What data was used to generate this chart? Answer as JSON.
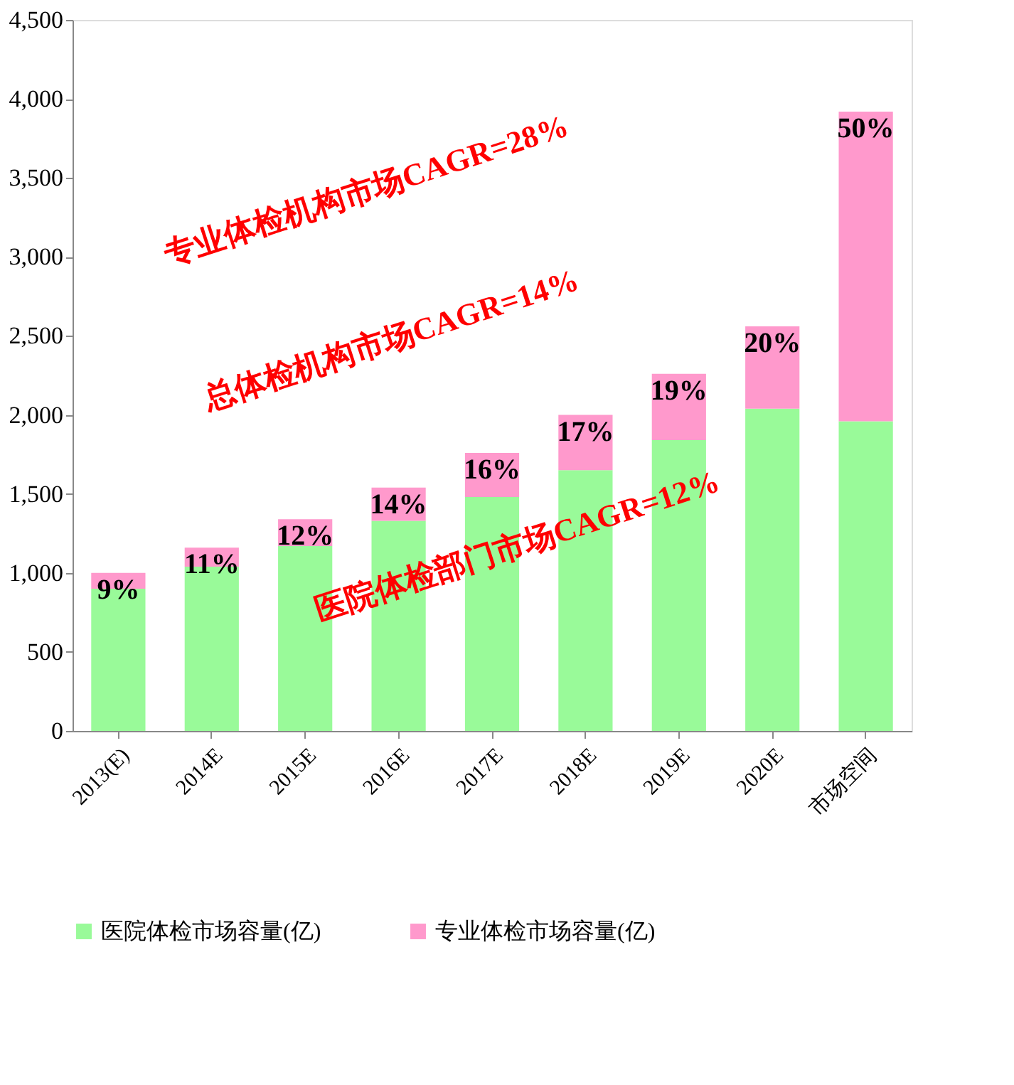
{
  "chart_data": {
    "type": "bar",
    "stacked": true,
    "categories": [
      "2013(E)",
      "2014E",
      "2015E",
      "2016E",
      "2017E",
      "2018E",
      "2019E",
      "2020E",
      "市场空间"
    ],
    "series": [
      {
        "name": "医院体检市场容量(亿)",
        "color": "#99fa99",
        "values": [
          900,
          1040,
          1170,
          1330,
          1480,
          1650,
          1840,
          2040,
          1960
        ]
      },
      {
        "name": "专业体检市场容量(亿)",
        "color": "#ff99cc",
        "values": [
          100,
          120,
          170,
          210,
          280,
          350,
          420,
          520,
          1960
        ]
      }
    ],
    "ylim": [
      0,
      4500
    ],
    "yticks": [
      0,
      500,
      {
        "value": 1000,
        "label": "1,000"
      },
      {
        "value": 1500,
        "label": "1,500"
      },
      {
        "value": 2000,
        "label": "2,000"
      },
      {
        "value": 2500,
        "label": "2,500"
      },
      {
        "value": 3000,
        "label": "3,000"
      },
      {
        "value": 3500,
        "label": "3,500"
      },
      {
        "value": 4000,
        "label": "4,000"
      },
      {
        "value": 4500,
        "label": "4,500"
      }
    ],
    "grid": false,
    "legend": "bottom",
    "annotations": [
      "专业体检机构市场CAGR=28%",
      "总体检机构市场CAGR=14%",
      "医院体检部门市场CAGR=12%",
      {
        "text": "9%",
        "x": "2013(E)",
        "y": 1000
      },
      {
        "text": "11%",
        "x": "2014E",
        "y": 1160
      },
      {
        "text": "12%",
        "x": "2015E",
        "y": 1340
      },
      {
        "text": "14%",
        "x": "2016E",
        "y": 1540
      },
      {
        "text": "16%",
        "x": "2017E",
        "y": 1760
      },
      {
        "text": "17%",
        "x": "2018E",
        "y": 2000
      },
      {
        "text": "19%",
        "x": "2019E",
        "y": 2260
      },
      {
        "text": "20%",
        "x": "2020E",
        "y": 2560
      },
      {
        "text": "50%",
        "x": "市场空间",
        "y": 3920
      }
    ]
  }
}
